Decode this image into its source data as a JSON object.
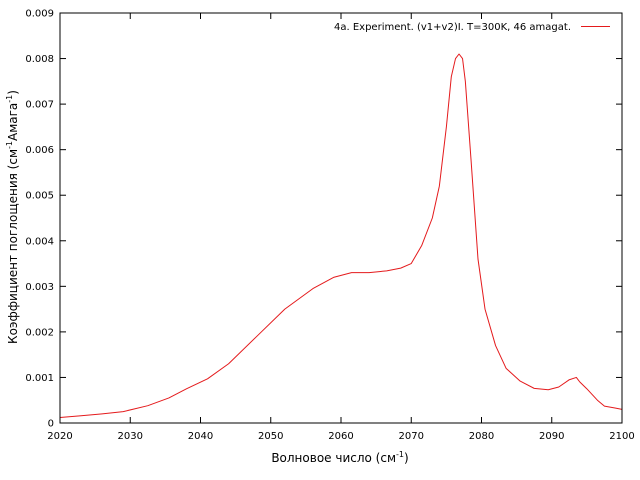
{
  "chart_data": {
    "type": "line",
    "xlabel": {
      "main": "Волновое число (см",
      "sup": "-1",
      "tail": ")"
    },
    "ylabel": {
      "main": "Коэффициент поглощения (см",
      "sup1": "-1",
      "mid": "Амага",
      "sup2": "-1",
      "tail": ")"
    },
    "xlim": [
      2020,
      2100
    ],
    "ylim": [
      0,
      0.009
    ],
    "xticks": [
      2020,
      2030,
      2040,
      2050,
      2060,
      2070,
      2080,
      2090,
      2100
    ],
    "yticks": [
      0,
      0.001,
      0.002,
      0.003,
      0.004,
      0.005,
      0.006,
      0.007,
      0.008,
      0.009
    ],
    "ytick_labels": [
      "0",
      "0.001",
      "0.002",
      "0.003",
      "0.004",
      "0.005",
      "0.006",
      "0.007",
      "0.008",
      "0.009"
    ],
    "legend_position": "top-right",
    "series": [
      {
        "name": "4a. Experiment. (v1+v2)I. T=300K, 46 amagat.",
        "color": "#e41a1c",
        "points": [
          [
            2020,
            0.00012
          ],
          [
            2023,
            0.00016
          ],
          [
            2026,
            0.0002
          ],
          [
            2029,
            0.00025
          ],
          [
            2032.5,
            0.00038
          ],
          [
            2035.5,
            0.00055
          ],
          [
            2038,
            0.00075
          ],
          [
            2041,
            0.00097
          ],
          [
            2044,
            0.0013
          ],
          [
            2048,
            0.0019
          ],
          [
            2052,
            0.0025
          ],
          [
            2056,
            0.00295
          ],
          [
            2059,
            0.0032
          ],
          [
            2061.5,
            0.0033
          ],
          [
            2064,
            0.0033
          ],
          [
            2066.5,
            0.00334
          ],
          [
            2068.5,
            0.0034
          ],
          [
            2070,
            0.0035
          ],
          [
            2071.5,
            0.0039
          ],
          [
            2073,
            0.0045
          ],
          [
            2074,
            0.0052
          ],
          [
            2075,
            0.0065
          ],
          [
            2075.7,
            0.0076
          ],
          [
            2076.3,
            0.008
          ],
          [
            2076.8,
            0.0081
          ],
          [
            2077.3,
            0.008
          ],
          [
            2077.7,
            0.0075
          ],
          [
            2078.5,
            0.0058
          ],
          [
            2079.5,
            0.0036
          ],
          [
            2080.5,
            0.0025
          ],
          [
            2082,
            0.0017
          ],
          [
            2083.5,
            0.0012
          ],
          [
            2085.5,
            0.00092
          ],
          [
            2087.5,
            0.00076
          ],
          [
            2089.5,
            0.00073
          ],
          [
            2091,
            0.00079
          ],
          [
            2092.5,
            0.00095
          ],
          [
            2093.5,
            0.001
          ],
          [
            2094,
            0.0009
          ],
          [
            2095,
            0.00075
          ],
          [
            2096.5,
            0.0005
          ],
          [
            2097.5,
            0.00037
          ],
          [
            2099,
            0.00033
          ],
          [
            2100,
            0.0003
          ]
        ]
      }
    ]
  }
}
